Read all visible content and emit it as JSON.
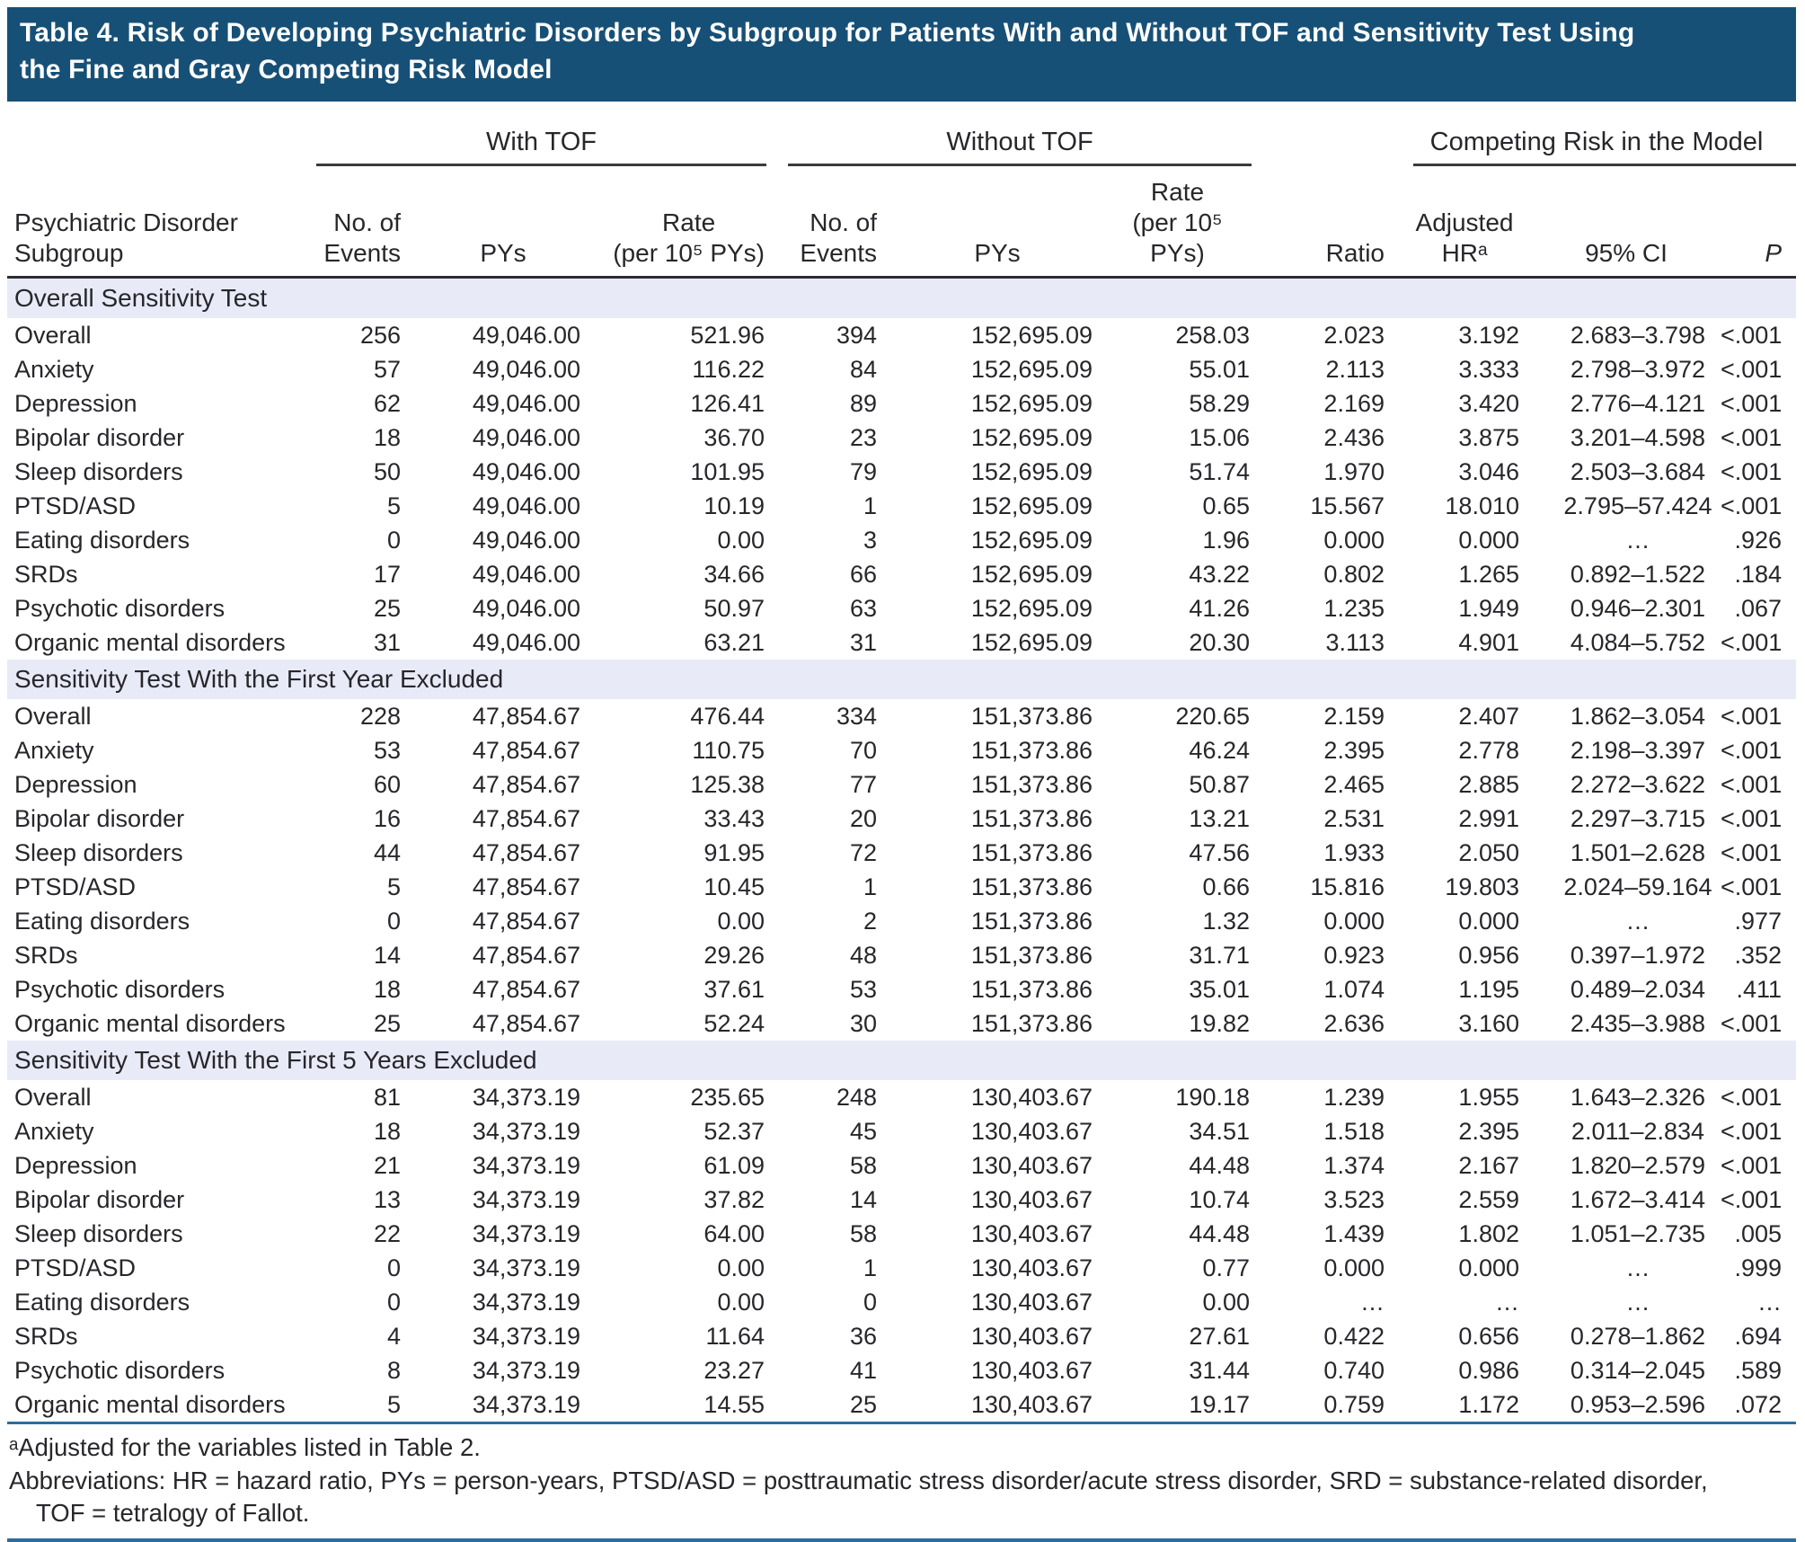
{
  "title": "Table 4. Risk of Developing Psychiatric Disorders by Subgroup for Patients With and Without TOF and Sensitivity Test Using\nthe Fine and Gray Competing Risk Model",
  "table": {
    "groups": [
      "With TOF",
      "Without TOF",
      "Competing Risk in the Model"
    ],
    "col_headers": {
      "subgroup": "Psychiatric Disorder\nSubgroup",
      "events": "No. of\nEvents",
      "pys": "PYs",
      "rate": "Rate\n(per 10⁵ PYs)",
      "ratio": "Ratio",
      "adjusted_hr": "Adjusted\nHRᵃ",
      "ci": "95% CI",
      "p": "P"
    },
    "column_keys": [
      "events_with",
      "pys_with",
      "rate_with",
      "events_without",
      "pys_without",
      "rate_without",
      "ratio",
      "adjusted_hr",
      "ci",
      "p"
    ],
    "sections": [
      {
        "header": "Overall Sensitivity Test",
        "rows": [
          {
            "label": "Overall",
            "values": [
              "256",
              "49,046.00",
              "521.96",
              "394",
              "152,695.09",
              "258.03",
              "2.023",
              "3.192",
              "2.683–3.798",
              "<.001"
            ]
          },
          {
            "label": "Anxiety",
            "values": [
              "57",
              "49,046.00",
              "116.22",
              "84",
              "152,695.09",
              "55.01",
              "2.113",
              "3.333",
              "2.798–3.972",
              "<.001"
            ]
          },
          {
            "label": "Depression",
            "values": [
              "62",
              "49,046.00",
              "126.41",
              "89",
              "152,695.09",
              "58.29",
              "2.169",
              "3.420",
              "2.776–4.121",
              "<.001"
            ]
          },
          {
            "label": "Bipolar disorder",
            "values": [
              "18",
              "49,046.00",
              "36.70",
              "23",
              "152,695.09",
              "15.06",
              "2.436",
              "3.875",
              "3.201–4.598",
              "<.001"
            ]
          },
          {
            "label": "Sleep disorders",
            "values": [
              "50",
              "49,046.00",
              "101.95",
              "79",
              "152,695.09",
              "51.74",
              "1.970",
              "3.046",
              "2.503–3.684",
              "<.001"
            ]
          },
          {
            "label": "PTSD/ASD",
            "values": [
              "5",
              "49,046.00",
              "10.19",
              "1",
              "152,695.09",
              "0.65",
              "15.567",
              "18.010",
              "2.795–57.424",
              "<.001"
            ]
          },
          {
            "label": "Eating disorders",
            "values": [
              "0",
              "49,046.00",
              "0.00",
              "3",
              "152,695.09",
              "1.96",
              "0.000",
              "0.000",
              "…",
              ".926"
            ]
          },
          {
            "label": "SRDs",
            "values": [
              "17",
              "49,046.00",
              "34.66",
              "66",
              "152,695.09",
              "43.22",
              "0.802",
              "1.265",
              "0.892–1.522",
              ".184"
            ]
          },
          {
            "label": "Psychotic disorders",
            "values": [
              "25",
              "49,046.00",
              "50.97",
              "63",
              "152,695.09",
              "41.26",
              "1.235",
              "1.949",
              "0.946–2.301",
              ".067"
            ]
          },
          {
            "label": "Organic mental disorders",
            "values": [
              "31",
              "49,046.00",
              "63.21",
              "31",
              "152,695.09",
              "20.30",
              "3.113",
              "4.901",
              "4.084–5.752",
              "<.001"
            ]
          }
        ]
      },
      {
        "header": "Sensitivity Test With the First Year Excluded",
        "rows": [
          {
            "label": "Overall",
            "values": [
              "228",
              "47,854.67",
              "476.44",
              "334",
              "151,373.86",
              "220.65",
              "2.159",
              "2.407",
              "1.862–3.054",
              "<.001"
            ]
          },
          {
            "label": "Anxiety",
            "values": [
              "53",
              "47,854.67",
              "110.75",
              "70",
              "151,373.86",
              "46.24",
              "2.395",
              "2.778",
              "2.198–3.397",
              "<.001"
            ]
          },
          {
            "label": "Depression",
            "values": [
              "60",
              "47,854.67",
              "125.38",
              "77",
              "151,373.86",
              "50.87",
              "2.465",
              "2.885",
              "2.272–3.622",
              "<.001"
            ]
          },
          {
            "label": "Bipolar disorder",
            "values": [
              "16",
              "47,854.67",
              "33.43",
              "20",
              "151,373.86",
              "13.21",
              "2.531",
              "2.991",
              "2.297–3.715",
              "<.001"
            ]
          },
          {
            "label": "Sleep disorders",
            "values": [
              "44",
              "47,854.67",
              "91.95",
              "72",
              "151,373.86",
              "47.56",
              "1.933",
              "2.050",
              "1.501–2.628",
              "<.001"
            ]
          },
          {
            "label": "PTSD/ASD",
            "values": [
              "5",
              "47,854.67",
              "10.45",
              "1",
              "151,373.86",
              "0.66",
              "15.816",
              "19.803",
              "2.024–59.164",
              "<.001"
            ]
          },
          {
            "label": "Eating disorders",
            "values": [
              "0",
              "47,854.67",
              "0.00",
              "2",
              "151,373.86",
              "1.32",
              "0.000",
              "0.000",
              "…",
              ".977"
            ]
          },
          {
            "label": "SRDs",
            "values": [
              "14",
              "47,854.67",
              "29.26",
              "48",
              "151,373.86",
              "31.71",
              "0.923",
              "0.956",
              "0.397–1.972",
              ".352"
            ]
          },
          {
            "label": "Psychotic disorders",
            "values": [
              "18",
              "47,854.67",
              "37.61",
              "53",
              "151,373.86",
              "35.01",
              "1.074",
              "1.195",
              "0.489–2.034",
              ".411"
            ]
          },
          {
            "label": "Organic mental disorders",
            "values": [
              "25",
              "47,854.67",
              "52.24",
              "30",
              "151,373.86",
              "19.82",
              "2.636",
              "3.160",
              "2.435–3.988",
              "<.001"
            ]
          }
        ]
      },
      {
        "header": "Sensitivity Test With the First 5 Years Excluded",
        "rows": [
          {
            "label": "Overall",
            "values": [
              "81",
              "34,373.19",
              "235.65",
              "248",
              "130,403.67",
              "190.18",
              "1.239",
              "1.955",
              "1.643–2.326",
              "<.001"
            ]
          },
          {
            "label": "Anxiety",
            "values": [
              "18",
              "34,373.19",
              "52.37",
              "45",
              "130,403.67",
              "34.51",
              "1.518",
              "2.395",
              "2.011–2.834",
              "<.001"
            ]
          },
          {
            "label": "Depression",
            "values": [
              "21",
              "34,373.19",
              "61.09",
              "58",
              "130,403.67",
              "44.48",
              "1.374",
              "2.167",
              "1.820–2.579",
              "<.001"
            ]
          },
          {
            "label": "Bipolar disorder",
            "values": [
              "13",
              "34,373.19",
              "37.82",
              "14",
              "130,403.67",
              "10.74",
              "3.523",
              "2.559",
              "1.672–3.414",
              "<.001"
            ]
          },
          {
            "label": "Sleep disorders",
            "values": [
              "22",
              "34,373.19",
              "64.00",
              "58",
              "130,403.67",
              "44.48",
              "1.439",
              "1.802",
              "1.051–2.735",
              ".005"
            ]
          },
          {
            "label": "PTSD/ASD",
            "values": [
              "0",
              "34,373.19",
              "0.00",
              "1",
              "130,403.67",
              "0.77",
              "0.000",
              "0.000",
              "…",
              ".999"
            ]
          },
          {
            "label": "Eating disorders",
            "values": [
              "0",
              "34,373.19",
              "0.00",
              "0",
              "130,403.67",
              "0.00",
              "…",
              "…",
              "…",
              "…"
            ]
          },
          {
            "label": "SRDs",
            "values": [
              "4",
              "34,373.19",
              "11.64",
              "36",
              "130,403.67",
              "27.61",
              "0.422",
              "0.656",
              "0.278–1.862",
              ".694"
            ]
          },
          {
            "label": "Psychotic disorders",
            "values": [
              "8",
              "34,373.19",
              "23.27",
              "41",
              "130,403.67",
              "31.44",
              "0.740",
              "0.986",
              "0.314–2.045",
              ".589"
            ]
          },
          {
            "label": "Organic mental disorders",
            "values": [
              "5",
              "34,373.19",
              "14.55",
              "25",
              "130,403.67",
              "19.17",
              "0.759",
              "1.172",
              "0.953–2.596",
              ".072"
            ]
          }
        ]
      }
    ]
  },
  "footnotes": {
    "adjusted": "ᵃAdjusted for the variables listed in Table 2.",
    "abbrev_line1": "Abbreviations: HR = hazard ratio, PYs = person-years, PTSD/ASD = posttraumatic stress disorder/acute stress disorder, SRD = substance-related disorder,",
    "abbrev_line2": "TOF = tetralogy of Fallot."
  },
  "colors": {
    "title_bar": "#175077",
    "section_band": "#e8ebf7",
    "rule_blue": "#2c6d9c",
    "text": "#28262b"
  }
}
